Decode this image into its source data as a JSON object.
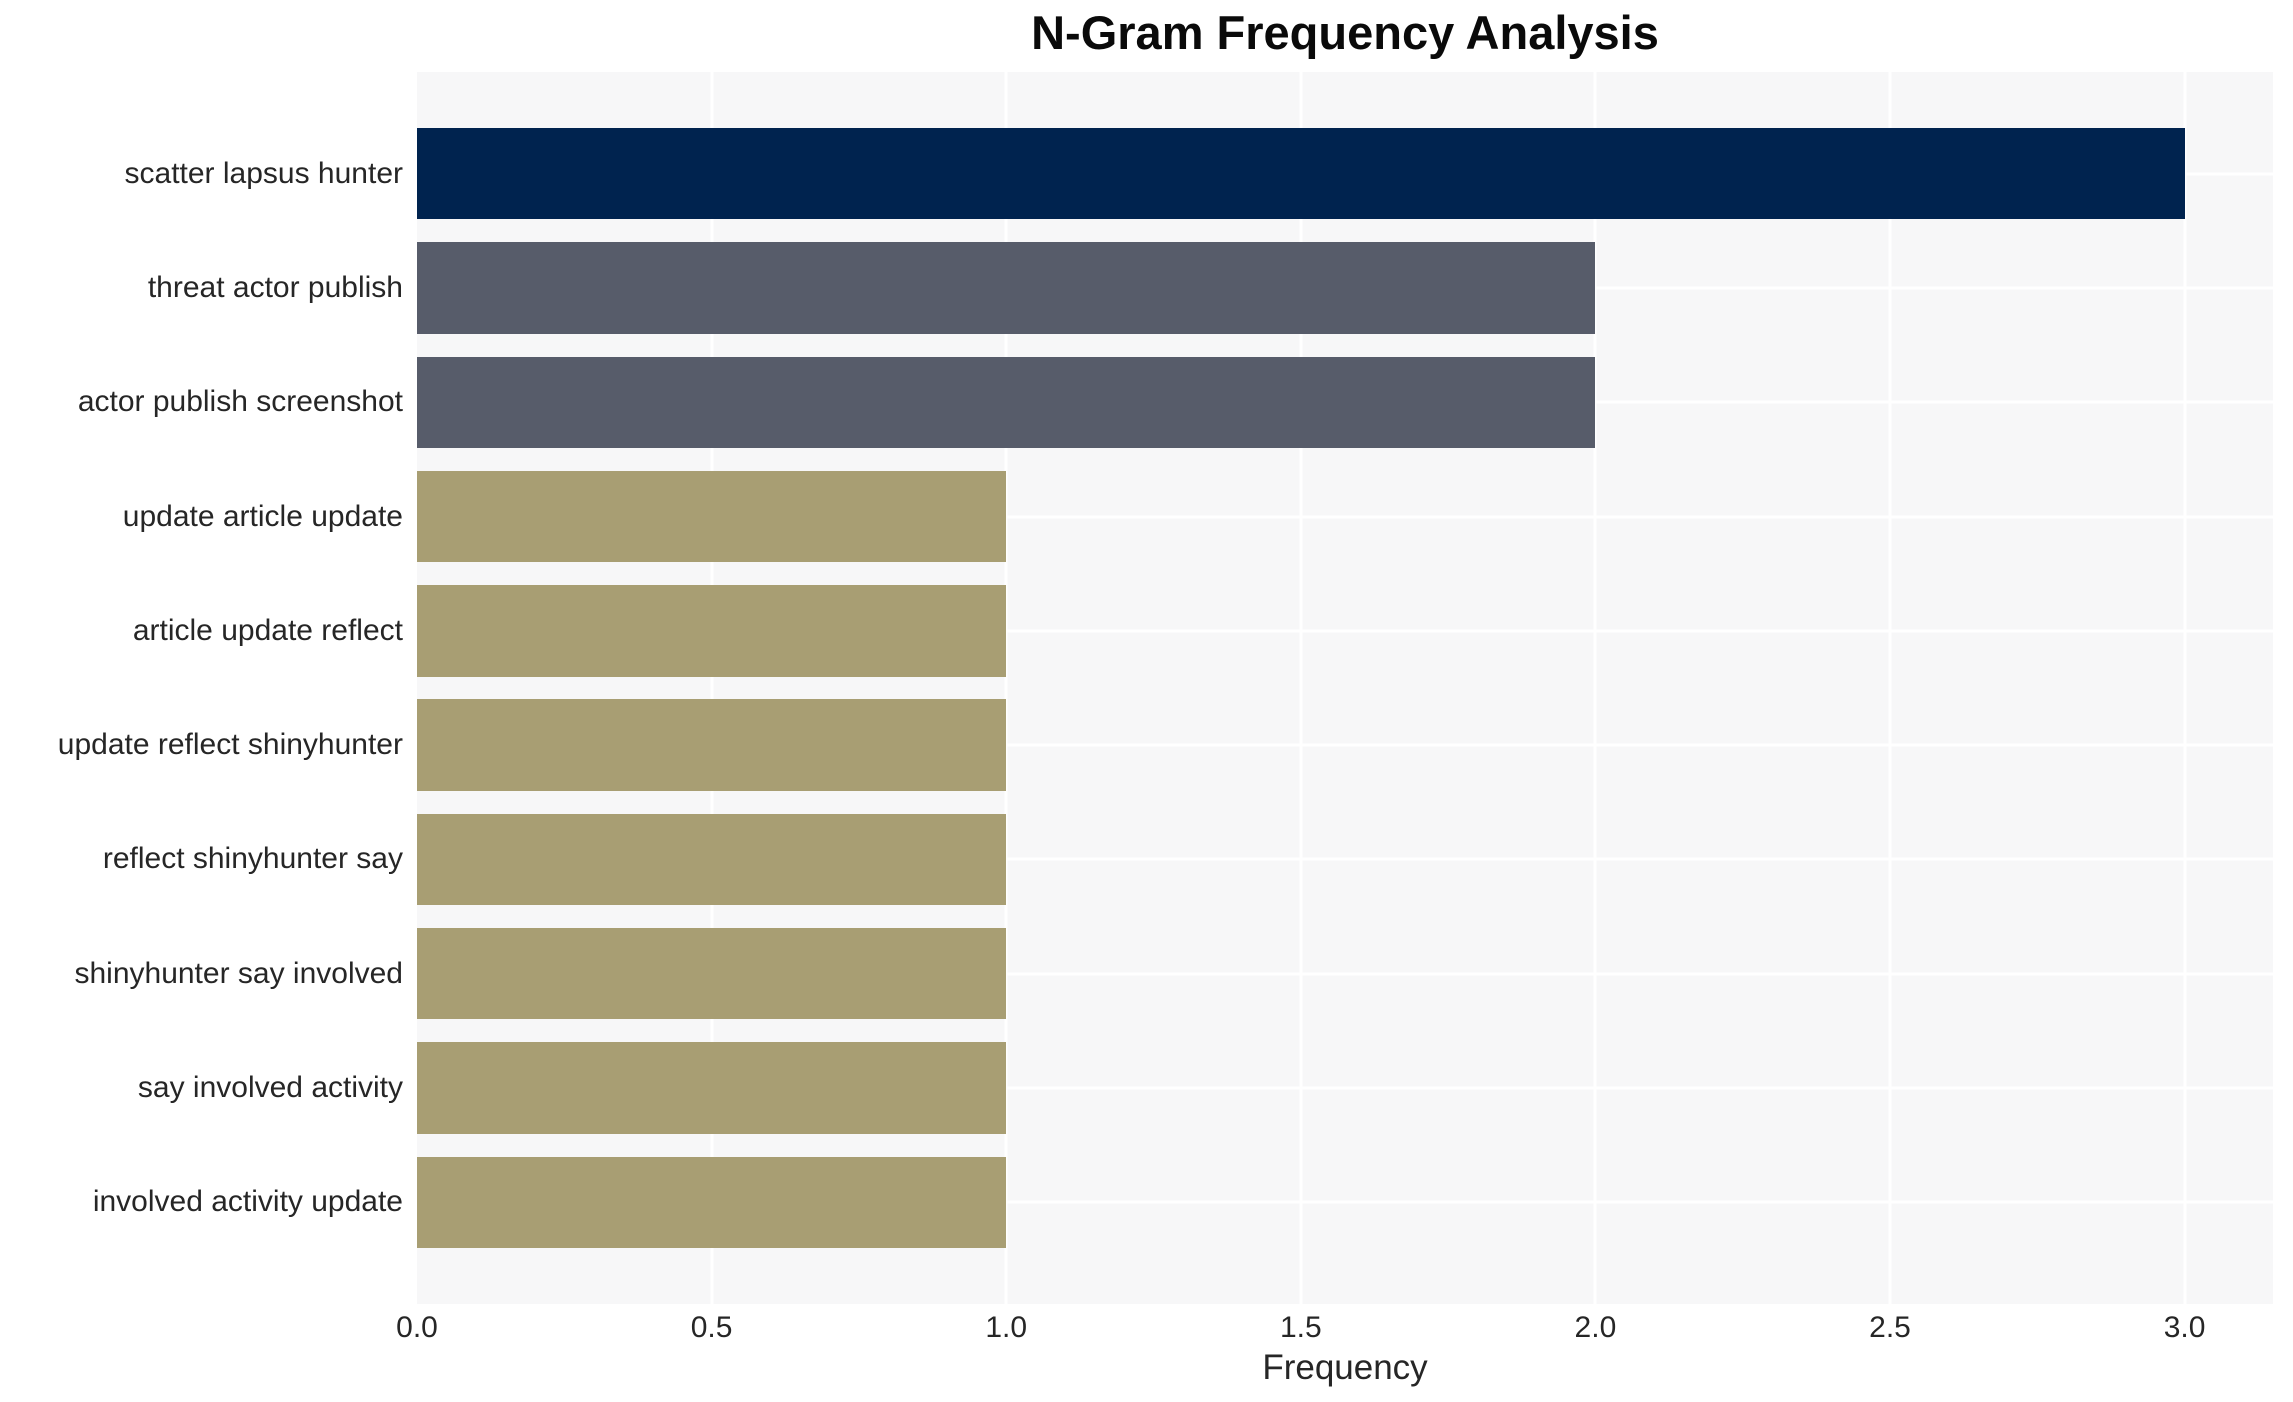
{
  "chart_data": {
    "type": "bar",
    "orientation": "horizontal",
    "title": "N-Gram Frequency Analysis",
    "xlabel": "Frequency",
    "ylabel": "",
    "categories": [
      "scatter lapsus hunter",
      "threat actor publish",
      "actor publish screenshot",
      "update article update",
      "article update reflect",
      "update reflect shinyhunter",
      "reflect shinyhunter say",
      "shinyhunter say involved",
      "say involved activity",
      "involved activity update"
    ],
    "values": [
      3,
      2,
      2,
      1,
      1,
      1,
      1,
      1,
      1,
      1
    ],
    "bar_colors": [
      "#00234f",
      "#575c6a",
      "#575c6a",
      "#a89e73",
      "#a89e73",
      "#a89e73",
      "#a89e73",
      "#a89e73",
      "#a89e73",
      "#a89e73"
    ],
    "x_ticks": [
      0.0,
      0.5,
      1.0,
      1.5,
      2.0,
      2.5,
      3.0
    ],
    "x_tick_labels": [
      "0.0",
      "0.5",
      "1.0",
      "1.5",
      "2.0",
      "2.5",
      "3.0"
    ],
    "xlim": [
      0,
      3.15
    ],
    "grid": true,
    "legend": false,
    "plot_bg_color": "#f7f7f8",
    "grid_color": "#ffffff"
  }
}
